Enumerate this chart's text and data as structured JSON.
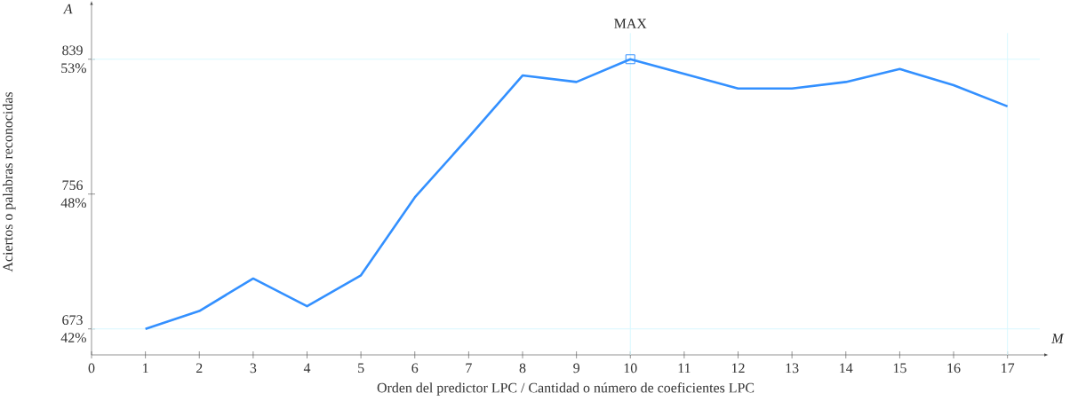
{
  "chart_data": {
    "type": "line",
    "xlabel": "Orden del predictor LPC / Cantidad o número de coeficientes LPC",
    "ylabel": "Aciertos o palabras reconocidas",
    "annotations": [
      "A",
      "M"
    ],
    "x": [
      1,
      2,
      3,
      4,
      5,
      6,
      7,
      8,
      9,
      10,
      11,
      12,
      13,
      14,
      15,
      16,
      17
    ],
    "series": [
      {
        "color": "#3390ff",
        "values": [
          673,
          684,
          704,
          687,
          706,
          754,
          791,
          829,
          825,
          839,
          830,
          821,
          821,
          825,
          833,
          823,
          810
        ]
      },
      {
        "type": "scatter",
        "marker": "square",
        "color": "#3390ff",
        "x": [
          10
        ],
        "values": [
          839
        ]
      }
    ],
    "xlim": [
      0,
      17.6
    ],
    "xticks": [
      0,
      1,
      2,
      3,
      4,
      5,
      6,
      7,
      8,
      9,
      10,
      11,
      12,
      13,
      14,
      15,
      16,
      17
    ],
    "ylim": [
      657,
      870
    ],
    "yticks": [
      673,
      756,
      839
    ],
    "y2lim": [
      41.32,
      54.72
    ],
    "y2ticks": [
      {
        "value": 42.33,
        "label": "42%"
      },
      {
        "value": 47.55,
        "label": "48%"
      },
      {
        "value": 52.77,
        "label": "53%"
      }
    ],
    "ref_lines": [
      {
        "axis": "y",
        "value": 839,
        "color": "#d8f8ff"
      },
      {
        "axis": "y",
        "value": 673,
        "color": "#d8f8ff"
      },
      {
        "axis": "x",
        "value": 10,
        "label": "MAX",
        "color": "#d8f8ff"
      },
      {
        "axis": "x",
        "value": 17,
        "color": "#d8f8ff"
      }
    ]
  }
}
